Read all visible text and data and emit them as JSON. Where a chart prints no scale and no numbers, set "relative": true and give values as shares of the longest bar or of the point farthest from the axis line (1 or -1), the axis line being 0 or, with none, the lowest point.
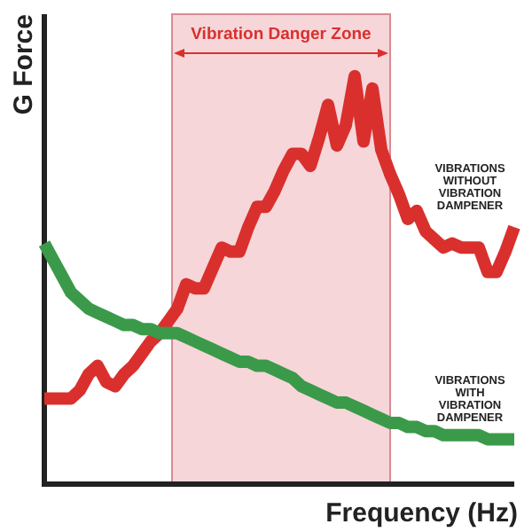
{
  "chart_data": {
    "type": "line",
    "relative": true,
    "xlabel": "Frequency (Hz)",
    "ylabel": "G Force",
    "categories": [
      null,
      null,
      null,
      null,
      null,
      null,
      null,
      null,
      null,
      null,
      null,
      null,
      null,
      null,
      null,
      null,
      null,
      null,
      null,
      null,
      null,
      null,
      null,
      null,
      null,
      null,
      null,
      null,
      null,
      null,
      null,
      null,
      null,
      null,
      null,
      null,
      null,
      null,
      null,
      null,
      null,
      null,
      null,
      null,
      null,
      null,
      null,
      null,
      null,
      null,
      null,
      null,
      null,
      null
    ],
    "series": [
      {
        "name": "VIBRATIONS WITHOUT VIBRATION DAMPENER",
        "color": "#d9302e",
        "values": [
          0.21,
          0.21,
          0.21,
          0.21,
          0.23,
          0.27,
          0.29,
          0.25,
          0.24,
          0.27,
          0.29,
          0.32,
          0.35,
          0.37,
          0.4,
          0.43,
          0.49,
          0.48,
          0.48,
          0.53,
          0.58,
          0.57,
          0.57,
          0.63,
          0.68,
          0.68,
          0.72,
          0.77,
          0.81,
          0.81,
          0.78,
          0.85,
          0.93,
          0.83,
          0.88,
          1,
          0.84,
          0.97,
          0.82,
          0.76,
          0.71,
          0.65,
          0.67,
          0.62,
          0.6,
          0.58,
          0.59,
          0.58,
          0.58,
          0.58,
          0.52,
          0.52,
          0.57,
          0.63
        ]
      },
      {
        "name": "VIBRATIONS WITH VIBRATION DAMPENER",
        "color": "#3a9a4a",
        "values": [
          0.59,
          0.55,
          0.51,
          0.47,
          0.45,
          0.43,
          0.42,
          0.41,
          0.4,
          0.39,
          0.39,
          0.38,
          0.38,
          0.37,
          0.37,
          0.37,
          0.36,
          0.35,
          0.34,
          0.33,
          0.32,
          0.31,
          0.3,
          0.3,
          0.29,
          0.29,
          0.28,
          0.27,
          0.26,
          0.24,
          0.23,
          0.22,
          0.21,
          0.2,
          0.2,
          0.19,
          0.18,
          0.17,
          0.16,
          0.15,
          0.15,
          0.14,
          0.14,
          0.13,
          0.13,
          0.12,
          0.12,
          0.12,
          0.12,
          0.12,
          0.11,
          0.11,
          0.11,
          0.11
        ]
      }
    ],
    "annotations": [
      "Vibration Danger Zone"
    ],
    "grid": false,
    "line_style": "solid",
    "marker": "none"
  }
}
